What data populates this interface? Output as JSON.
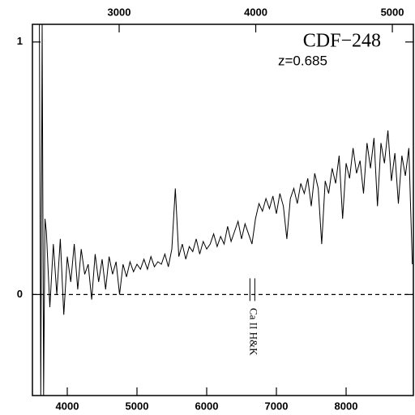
{
  "chart_data": {
    "type": "line",
    "title": "CDF−248",
    "subtitle": "z=0.685",
    "annotation": "Ca II H&K",
    "annotation_lines": [
      6620,
      6690
    ],
    "xlim": [
      3500,
      8965
    ],
    "xticks": [
      4000,
      5000,
      6000,
      7000,
      8000
    ],
    "x2lim": [
      2365,
      5154
    ],
    "x2ticks": [
      3000,
      4000,
      5000
    ],
    "ylim": [
      -0.4,
      1.07
    ],
    "yticks": [
      0,
      1
    ],
    "zero_line": true,
    "color": "#000000",
    "x": [
      3600,
      3620,
      3640,
      3660,
      3680,
      3700,
      3750,
      3800,
      3850,
      3900,
      3950,
      4000,
      4050,
      4100,
      4150,
      4200,
      4250,
      4300,
      4350,
      4400,
      4450,
      4500,
      4550,
      4600,
      4650,
      4700,
      4750,
      4800,
      4850,
      4900,
      4950,
      5000,
      5050,
      5100,
      5150,
      5200,
      5250,
      5300,
      5350,
      5400,
      5450,
      5500,
      5550,
      5600,
      5650,
      5700,
      5750,
      5800,
      5850,
      5900,
      5950,
      6000,
      6050,
      6100,
      6150,
      6200,
      6250,
      6300,
      6350,
      6400,
      6450,
      6500,
      6550,
      6600,
      6650,
      6700,
      6750,
      6800,
      6850,
      6900,
      6950,
      7000,
      7050,
      7100,
      7150,
      7200,
      7250,
      7300,
      7350,
      7400,
      7450,
      7500,
      7550,
      7600,
      7650,
      7700,
      7750,
      7800,
      7850,
      7900,
      7950,
      8000,
      8050,
      8100,
      8150,
      8200,
      8250,
      8300,
      8350,
      8400,
      8450,
      8500,
      8550,
      8600,
      8650,
      8700,
      8750,
      8800,
      8850,
      8900,
      8950
    ],
    "values": [
      1.07,
      -0.4,
      1.07,
      -0.4,
      0.3,
      0.25,
      -0.05,
      0.2,
      0.0,
      0.22,
      -0.08,
      0.15,
      0.05,
      0.2,
      0.02,
      0.18,
      0.08,
      0.12,
      -0.02,
      0.16,
      0.05,
      0.14,
      0.02,
      0.15,
      0.08,
      0.13,
      0.0,
      0.12,
      0.07,
      0.13,
      0.09,
      0.12,
      0.1,
      0.14,
      0.1,
      0.15,
      0.11,
      0.13,
      0.12,
      0.16,
      0.11,
      0.18,
      0.42,
      0.15,
      0.2,
      0.14,
      0.19,
      0.17,
      0.22,
      0.16,
      0.21,
      0.18,
      0.2,
      0.24,
      0.19,
      0.23,
      0.2,
      0.27,
      0.21,
      0.25,
      0.29,
      0.22,
      0.28,
      0.24,
      0.2,
      0.3,
      0.36,
      0.33,
      0.38,
      0.34,
      0.39,
      0.32,
      0.4,
      0.35,
      0.22,
      0.38,
      0.42,
      0.36,
      0.44,
      0.4,
      0.46,
      0.35,
      0.48,
      0.42,
      0.2,
      0.45,
      0.4,
      0.5,
      0.44,
      0.55,
      0.3,
      0.52,
      0.46,
      0.58,
      0.48,
      0.53,
      0.4,
      0.6,
      0.5,
      0.62,
      0.35,
      0.6,
      0.52,
      0.65,
      0.45,
      0.56,
      0.36,
      0.55,
      0.47,
      0.58,
      0.12
    ]
  }
}
